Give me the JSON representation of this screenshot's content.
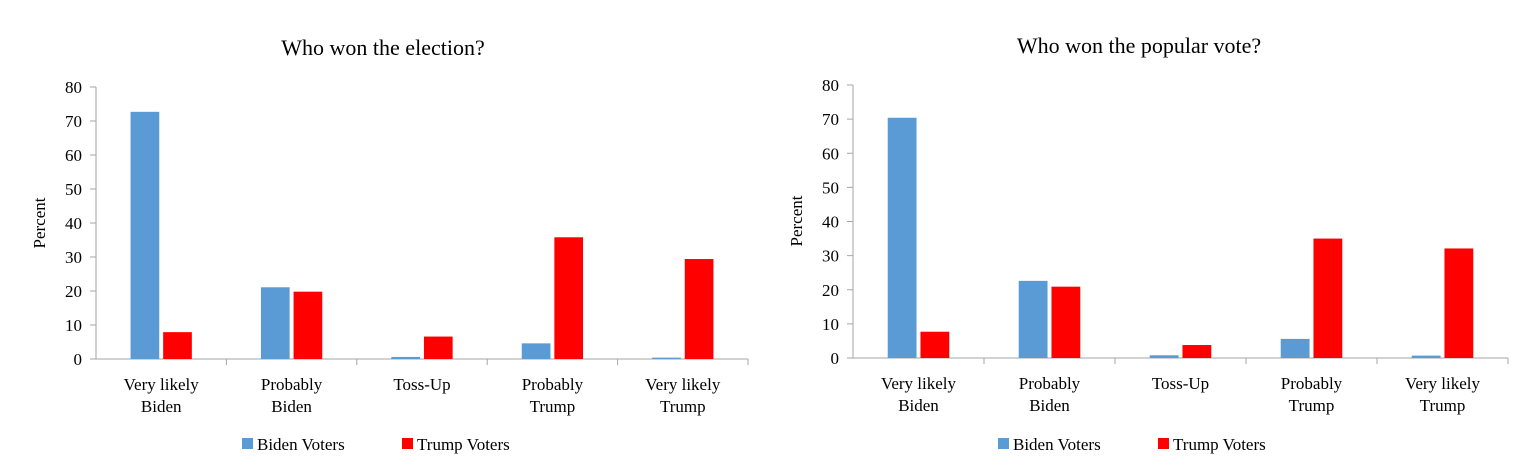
{
  "chart_data": [
    {
      "type": "bar",
      "title": "Who won the election?",
      "ylabel": "Percent",
      "xlabel": "",
      "ylim": [
        0,
        80
      ],
      "yticks": [
        0,
        10,
        20,
        30,
        40,
        50,
        60,
        70,
        80
      ],
      "categories": [
        [
          "Very likely",
          "Biden"
        ],
        [
          "Probably",
          "Biden"
        ],
        [
          "Toss-Up"
        ],
        [
          "Probably",
          "Trump"
        ],
        [
          "Very likely",
          "Trump"
        ]
      ],
      "series": [
        {
          "name": "Biden Voters",
          "color": "#5b9bd5",
          "values": [
            72.7,
            21.1,
            0.6,
            4.6,
            0.4
          ]
        },
        {
          "name": "Trump Voters",
          "color": "#ff0000",
          "values": [
            7.9,
            19.8,
            6.6,
            35.8,
            29.4
          ]
        }
      ],
      "grid": false,
      "legend": "bottom"
    },
    {
      "type": "bar",
      "title": "Who won the popular vote?",
      "ylabel": "Percent",
      "xlabel": "",
      "ylim": [
        0,
        80
      ],
      "yticks": [
        0,
        10,
        20,
        30,
        40,
        50,
        60,
        70,
        80
      ],
      "categories": [
        [
          "Very likely",
          "Biden"
        ],
        [
          "Probably",
          "Biden"
        ],
        [
          "Toss-Up"
        ],
        [
          "Probably",
          "Trump"
        ],
        [
          "Very likely",
          "Trump"
        ]
      ],
      "series": [
        {
          "name": "Biden Voters",
          "color": "#5b9bd5",
          "values": [
            70.4,
            22.6,
            0.8,
            5.6,
            0.7
          ]
        },
        {
          "name": "Trump Voters",
          "color": "#ff0000",
          "values": [
            7.7,
            20.9,
            3.8,
            35.0,
            32.1
          ]
        }
      ],
      "grid": false,
      "legend": "bottom"
    }
  ]
}
